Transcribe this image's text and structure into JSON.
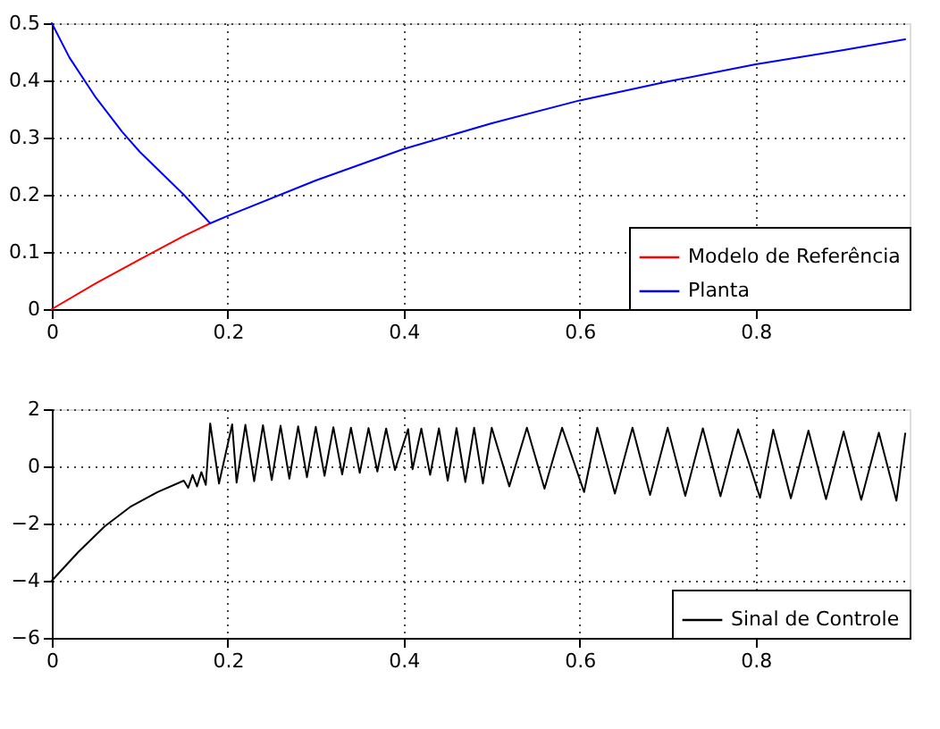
{
  "chart_data": [
    {
      "type": "line",
      "xlim": [
        0,
        0.975
      ],
      "xticks": [
        0,
        0.2,
        0.4,
        0.6,
        0.8
      ],
      "ylim": [
        0,
        0.5
      ],
      "yticks": [
        0,
        0.1,
        0.2,
        0.3,
        0.4,
        0.5
      ],
      "grid": true,
      "legend": "bottom right",
      "line_style": "solid",
      "series": [
        {
          "name": "Modelo de Referência",
          "color": "#ff0000",
          "x": [
            0,
            0.05,
            0.1,
            0.15,
            0.18
          ],
          "values": [
            0,
            0.045,
            0.087,
            0.128,
            0.15
          ]
        },
        {
          "name": "Planta",
          "color": "#0000ff",
          "x": [
            0,
            0.02,
            0.05,
            0.08,
            0.1,
            0.13,
            0.15,
            0.18,
            0.2,
            0.3,
            0.4,
            0.5,
            0.6,
            0.7,
            0.8,
            0.9,
            0.97
          ],
          "values": [
            0.5,
            0.44,
            0.37,
            0.31,
            0.275,
            0.23,
            0.2,
            0.15,
            0.163,
            0.225,
            0.28,
            0.325,
            0.365,
            0.398,
            0.428,
            0.453,
            0.472
          ]
        }
      ]
    },
    {
      "type": "line",
      "xlim": [
        0,
        0.975
      ],
      "xticks": [
        0,
        0.2,
        0.4,
        0.6,
        0.8
      ],
      "ylim": [
        -6,
        2
      ],
      "yticks": [
        {
          "value": -6,
          "label": "−6"
        },
        {
          "value": -4,
          "label": "−4"
        },
        {
          "value": -2,
          "label": "−2"
        },
        0,
        2
      ],
      "grid": true,
      "legend": "bottom right",
      "line_style": "solid",
      "series": [
        {
          "name": "Sinal de Controle",
          "color": "#000000",
          "x": [
            0,
            0.03,
            0.06,
            0.09,
            0.12,
            0.15,
            0.155,
            0.16,
            0.165,
            0.17,
            0.175,
            0.18,
            0.19,
            0.205,
            0.21,
            0.22,
            0.23,
            0.24,
            0.25,
            0.26,
            0.27,
            0.28,
            0.29,
            0.3,
            0.31,
            0.32,
            0.33,
            0.34,
            0.35,
            0.36,
            0.37,
            0.38,
            0.39,
            0.405,
            0.41,
            0.42,
            0.43,
            0.44,
            0.45,
            0.46,
            0.47,
            0.48,
            0.49,
            0.5,
            0.52,
            0.54,
            0.56,
            0.58,
            0.605,
            0.62,
            0.64,
            0.66,
            0.68,
            0.7,
            0.72,
            0.74,
            0.76,
            0.78,
            0.805,
            0.82,
            0.84,
            0.86,
            0.88,
            0.9,
            0.92,
            0.94,
            0.96,
            0.97
          ],
          "values": [
            -4,
            -3,
            -2.1,
            -1.4,
            -0.9,
            -0.5,
            -0.75,
            -0.3,
            -0.7,
            -0.2,
            -0.65,
            1.5,
            -0.6,
            1.47,
            -0.57,
            1.45,
            -0.52,
            1.44,
            -0.48,
            1.42,
            -0.43,
            1.4,
            -0.38,
            1.38,
            -0.33,
            1.37,
            -0.28,
            1.35,
            -0.23,
            1.34,
            -0.18,
            1.32,
            -0.13,
            1.3,
            -0.1,
            1.32,
            -0.3,
            1.33,
            -0.5,
            1.34,
            -0.55,
            1.35,
            -0.6,
            1.35,
            -0.7,
            1.35,
            -0.78,
            1.35,
            -0.9,
            1.35,
            -0.95,
            1.35,
            -1.0,
            1.35,
            -1.03,
            1.33,
            -1.05,
            1.3,
            -1.1,
            1.28,
            -1.12,
            1.25,
            -1.15,
            1.22,
            -1.17,
            1.18,
            -1.2,
            1.15
          ]
        }
      ]
    }
  ]
}
